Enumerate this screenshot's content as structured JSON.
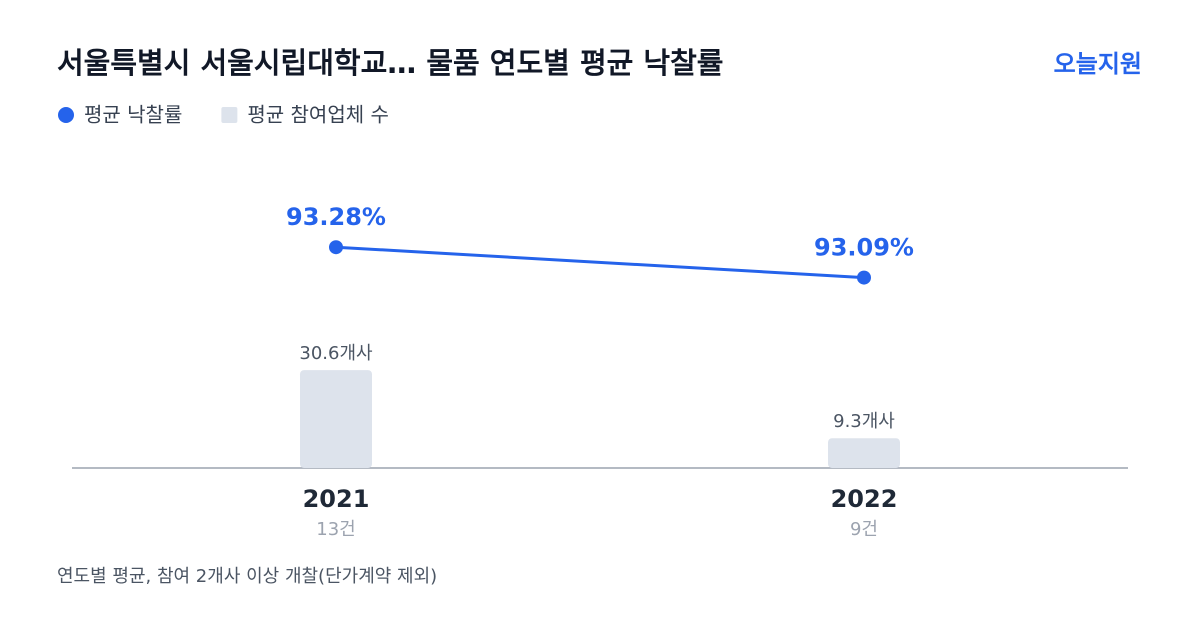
{
  "brand": "오늘지원",
  "chart_data": {
    "type": "combo",
    "title": "서울특별시 서울시립대학교… 물품 연도별 평균 낙찰률",
    "categories": [
      "2021",
      "2022"
    ],
    "category_notes": [
      "13건",
      "9건"
    ],
    "series": [
      {
        "name": "평균 낙찰률",
        "type": "line",
        "axis": "y2",
        "color": "#2563eb",
        "values": [
          93.28,
          93.09
        ],
        "value_labels": [
          "93.28%",
          "93.09%"
        ]
      },
      {
        "name": "평균 참여업체 수",
        "type": "bar",
        "color": "#dde3ec",
        "values": [
          30.6,
          9.3
        ],
        "value_labels": [
          "30.6개사",
          "9.3개사"
        ]
      }
    ],
    "ylim": [
      0,
      100
    ],
    "y2lim": [
      91.9,
      93.9
    ],
    "note": "연도별 평균, 참여 2개사 이상 개찰(단가계약 제외)"
  }
}
